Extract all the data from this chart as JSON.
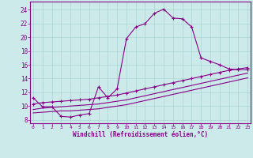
{
  "xlabel": "Windchill (Refroidissement éolien,°C)",
  "bg_color": "#cceaea",
  "line_color": "#880088",
  "grid_color": "#aad4d4",
  "x_ticks": [
    0,
    1,
    2,
    3,
    4,
    5,
    6,
    7,
    8,
    9,
    10,
    11,
    12,
    13,
    14,
    15,
    16,
    17,
    18,
    19,
    20,
    21,
    22,
    23
  ],
  "y_ticks": [
    8,
    10,
    12,
    14,
    16,
    18,
    20,
    22,
    24
  ],
  "xlim": [
    -0.3,
    23.3
  ],
  "ylim": [
    7.5,
    25.2
  ],
  "series1_x": [
    0,
    1,
    2,
    3,
    4,
    5,
    6,
    7,
    8,
    9,
    10,
    11,
    12,
    13,
    14,
    15,
    16,
    17,
    18,
    19,
    20,
    21,
    22,
    23
  ],
  "series1_y": [
    11.2,
    9.9,
    9.9,
    8.5,
    8.4,
    8.7,
    8.9,
    12.8,
    11.2,
    12.5,
    19.8,
    21.5,
    22.0,
    23.5,
    24.1,
    22.8,
    22.7,
    21.5,
    17.0,
    16.5,
    16.0,
    15.4,
    15.3,
    15.3
  ],
  "series2_x": [
    0,
    1,
    2,
    3,
    4,
    5,
    6,
    7,
    8,
    9,
    10,
    11,
    12,
    13,
    14,
    15,
    16,
    17,
    18,
    19,
    20,
    21,
    22,
    23
  ],
  "series2_y": [
    10.3,
    10.5,
    10.6,
    10.7,
    10.8,
    10.9,
    11.0,
    11.2,
    11.4,
    11.6,
    11.9,
    12.2,
    12.5,
    12.8,
    13.1,
    13.4,
    13.7,
    14.0,
    14.3,
    14.6,
    14.9,
    15.2,
    15.4,
    15.6
  ],
  "series3_x": [
    0,
    1,
    2,
    3,
    4,
    5,
    6,
    7,
    8,
    9,
    10,
    11,
    12,
    13,
    14,
    15,
    16,
    17,
    18,
    19,
    20,
    21,
    22,
    23
  ],
  "series3_y": [
    9.5,
    9.7,
    9.8,
    9.9,
    10.0,
    10.1,
    10.2,
    10.3,
    10.5,
    10.7,
    10.9,
    11.2,
    11.5,
    11.8,
    12.1,
    12.4,
    12.7,
    13.0,
    13.3,
    13.6,
    13.9,
    14.2,
    14.5,
    14.8
  ],
  "series4_x": [
    0,
    1,
    2,
    3,
    4,
    5,
    6,
    7,
    8,
    9,
    10,
    11,
    12,
    13,
    14,
    15,
    16,
    17,
    18,
    19,
    20,
    21,
    22,
    23
  ],
  "series4_y": [
    9.0,
    9.1,
    9.2,
    9.3,
    9.3,
    9.4,
    9.5,
    9.6,
    9.8,
    10.0,
    10.2,
    10.5,
    10.8,
    11.1,
    11.4,
    11.7,
    12.0,
    12.3,
    12.6,
    12.9,
    13.2,
    13.5,
    13.8,
    14.1
  ],
  "marker": "+",
  "marker_size": 3.0,
  "line_width": 0.8
}
